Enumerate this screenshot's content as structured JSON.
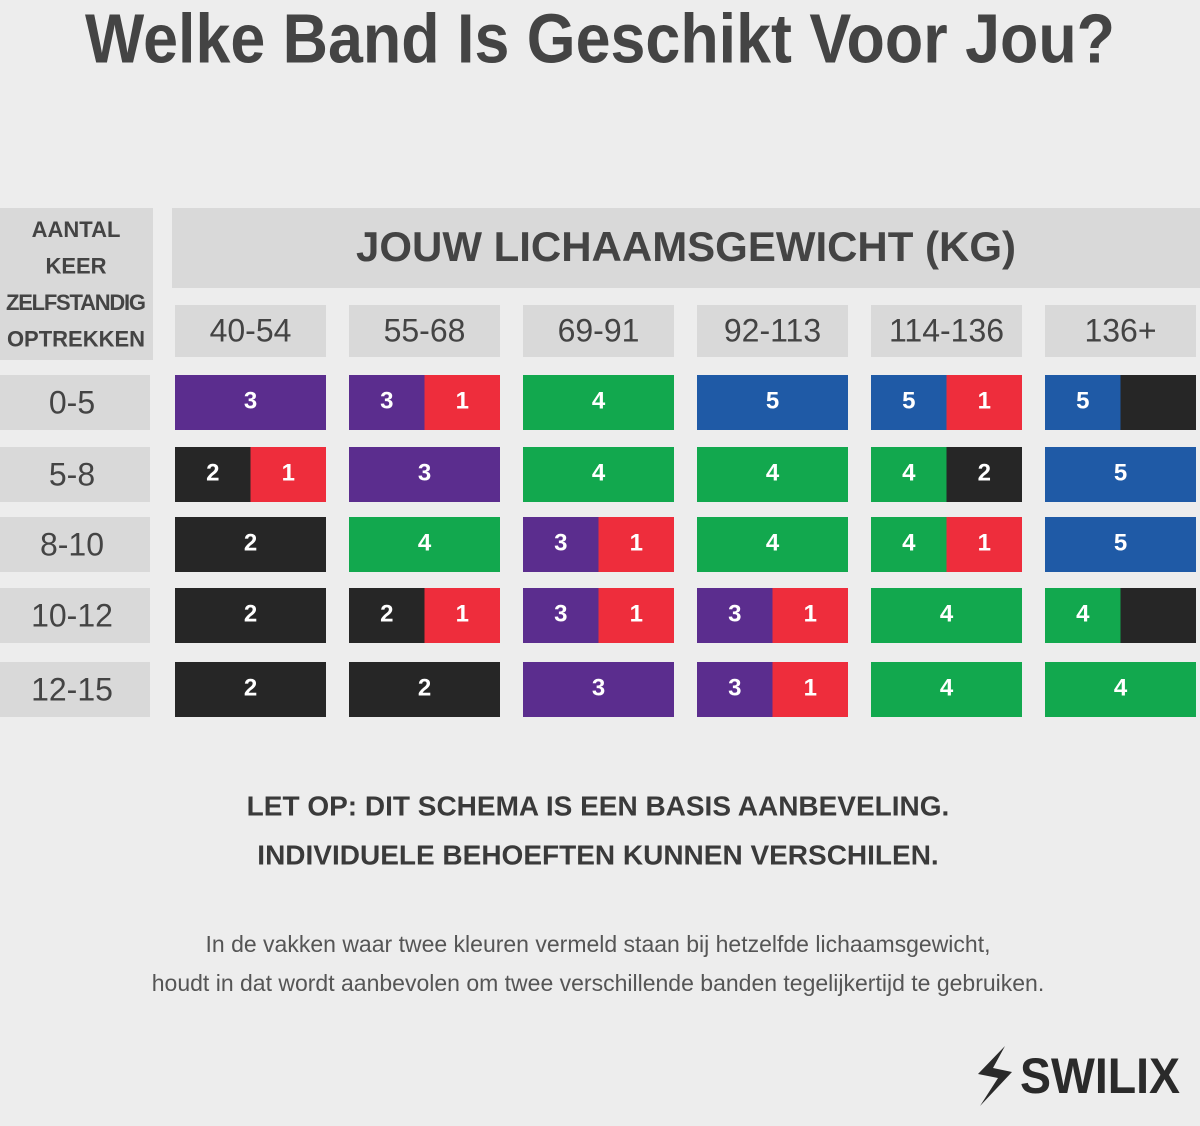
{
  "title": "Welke Band Is Geschikt Voor Jou?",
  "table": {
    "row_header": [
      "AANTAL",
      "KEER",
      "ZELFSTANDIG",
      "OPTREKKEN"
    ],
    "column_group_header": "JOUW LICHAAMSGEWICHT (KG)",
    "columns": [
      "40-54",
      "55-68",
      "69-91",
      "92-113",
      "114-136",
      "136+"
    ],
    "rows": [
      {
        "label": "0-5",
        "cells": [
          [
            {
              "text": "3",
              "color": "#5b2d8e"
            }
          ],
          [
            {
              "text": "3",
              "color": "#5b2d8e"
            },
            {
              "text": "1",
              "color": "#ee2d3c"
            }
          ],
          [
            {
              "text": "4",
              "color": "#12a84e"
            }
          ],
          [
            {
              "text": "5",
              "color": "#1f5aa6"
            }
          ],
          [
            {
              "text": "5",
              "color": "#1f5aa6"
            },
            {
              "text": "1",
              "color": "#ee2d3c"
            }
          ],
          [
            {
              "text": "5",
              "color": "#1f5aa6"
            },
            {
              "color": "#262626"
            }
          ]
        ]
      },
      {
        "label": "5-8",
        "cells": [
          [
            {
              "text": "2",
              "color": "#262626"
            },
            {
              "text": "1",
              "color": "#ee2d3c"
            }
          ],
          [
            {
              "text": "3",
              "color": "#5b2d8e"
            }
          ],
          [
            {
              "text": "4",
              "color": "#12a84e"
            }
          ],
          [
            {
              "text": "4",
              "color": "#12a84e"
            }
          ],
          [
            {
              "text": "4",
              "color": "#12a84e"
            },
            {
              "text": "2",
              "color": "#262626"
            }
          ],
          [
            {
              "text": "5",
              "color": "#1f5aa6"
            }
          ]
        ]
      },
      {
        "label": "8-10",
        "cells": [
          [
            {
              "text": "2",
              "color": "#262626"
            }
          ],
          [
            {
              "text": "4",
              "color": "#12a84e"
            }
          ],
          [
            {
              "text": "3",
              "color": "#5b2d8e"
            },
            {
              "text": "1",
              "color": "#ee2d3c"
            }
          ],
          [
            {
              "text": "4",
              "color": "#12a84e"
            }
          ],
          [
            {
              "text": "4",
              "color": "#12a84e"
            },
            {
              "text": "1",
              "color": "#ee2d3c"
            }
          ],
          [
            {
              "text": "5",
              "color": "#1f5aa6"
            }
          ]
        ]
      },
      {
        "label": "10-12",
        "cells": [
          [
            {
              "text": "2",
              "color": "#262626"
            }
          ],
          [
            {
              "text": "2",
              "color": "#262626"
            },
            {
              "text": "1",
              "color": "#ee2d3c"
            }
          ],
          [
            {
              "text": "3",
              "color": "#5b2d8e"
            },
            {
              "text": "1",
              "color": "#ee2d3c"
            }
          ],
          [
            {
              "text": "3",
              "color": "#5b2d8e"
            },
            {
              "text": "1",
              "color": "#ee2d3c"
            }
          ],
          [
            {
              "text": "4",
              "color": "#12a84e"
            }
          ],
          [
            {
              "text": "4",
              "color": "#12a84e"
            },
            {
              "color": "#262626"
            }
          ]
        ]
      },
      {
        "label": "12-15",
        "cells": [
          [
            {
              "text": "2",
              "color": "#262626"
            }
          ],
          [
            {
              "text": "2",
              "color": "#262626"
            }
          ],
          [
            {
              "text": "3",
              "color": "#5b2d8e"
            }
          ],
          [
            {
              "text": "3",
              "color": "#5b2d8e"
            },
            {
              "text": "1",
              "color": "#ee2d3c"
            }
          ],
          [
            {
              "text": "4",
              "color": "#12a84e"
            }
          ],
          [
            {
              "text": "4",
              "color": "#12a84e"
            }
          ]
        ]
      }
    ]
  },
  "notice": [
    "LET OP: DIT SCHEMA IS EEN BASIS AANBEVELING.",
    "INDIVIDUELE BEHOEFTEN KUNNEN VERSCHILEN."
  ],
  "footnote": [
    "In de vakken waar twee kleuren vermeld staan bij hetzelfde lichaamsgewicht,",
    "houdt in dat wordt aanbevolen om twee verschillende banden tegelijkertijd te gebruiken."
  ],
  "logo": "SWILIX"
}
